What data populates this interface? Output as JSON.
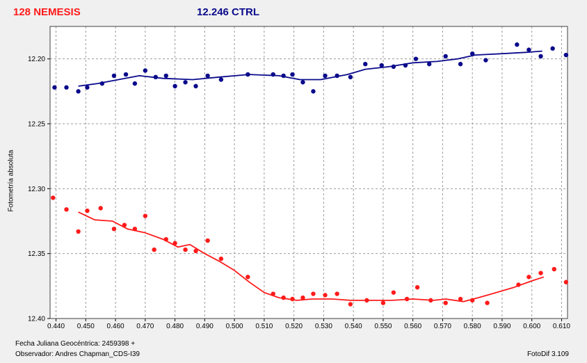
{
  "header": {
    "target_label": "128 NEMESIS",
    "control_label": "12.246 CTRL",
    "target_color": "#ff1a1a",
    "control_color": "#0a0a8c"
  },
  "footer": {
    "date_label": "Fecha Juliana Geocéntrica: 2459398 +",
    "observer_label": "Observador: Andres Chapman_CDS-I39",
    "version_label": "FotoDif 3.109"
  },
  "chart_data": {
    "type": "scatter",
    "ylabel": "Fotometría absoluta",
    "xlim": [
      0.438,
      0.612
    ],
    "ylim": [
      12.4,
      12.175
    ],
    "y_inverted": true,
    "grid": true,
    "x_ticks": [
      "0.440",
      "0.450",
      "0.460",
      "0.470",
      "0.480",
      "0.490",
      "0.500",
      "0.510",
      "0.520",
      "0.530",
      "0.540",
      "0.550",
      "0.560",
      "0.570",
      "0.580",
      "0.590",
      "0.600",
      "0.610"
    ],
    "y_ticks": [
      "12.20",
      "12.25",
      "12.30",
      "12.35",
      "12.40"
    ],
    "series": [
      {
        "name": "12.246 CTRL",
        "color": "#0a0a8c",
        "points": [
          [
            0.4395,
            12.222
          ],
          [
            0.4435,
            12.222
          ],
          [
            0.4475,
            12.225
          ],
          [
            0.4505,
            12.222
          ],
          [
            0.4555,
            12.219
          ],
          [
            0.4595,
            12.213
          ],
          [
            0.4635,
            12.212
          ],
          [
            0.4665,
            12.219
          ],
          [
            0.47,
            12.209
          ],
          [
            0.4735,
            12.214
          ],
          [
            0.477,
            12.213
          ],
          [
            0.48,
            12.221
          ],
          [
            0.4835,
            12.218
          ],
          [
            0.487,
            12.221
          ],
          [
            0.491,
            12.213
          ],
          [
            0.4955,
            12.216
          ],
          [
            0.5045,
            12.212
          ],
          [
            0.513,
            12.212
          ],
          [
            0.5165,
            12.213
          ],
          [
            0.5195,
            12.212
          ],
          [
            0.523,
            12.218
          ],
          [
            0.5265,
            12.225
          ],
          [
            0.5305,
            12.213
          ],
          [
            0.5345,
            12.213
          ],
          [
            0.539,
            12.214
          ],
          [
            0.544,
            12.204
          ],
          [
            0.5495,
            12.205
          ],
          [
            0.5535,
            12.206
          ],
          [
            0.5575,
            12.205
          ],
          [
            0.561,
            12.2
          ],
          [
            0.5655,
            12.204
          ],
          [
            0.571,
            12.198
          ],
          [
            0.576,
            12.204
          ],
          [
            0.58,
            12.196
          ],
          [
            0.5845,
            12.201
          ],
          [
            0.595,
            12.189
          ],
          [
            0.599,
            12.193
          ],
          [
            0.603,
            12.198
          ],
          [
            0.607,
            12.192
          ],
          [
            0.6115,
            12.197
          ]
        ],
        "trend": [
          [
            0.4475,
            12.221
          ],
          [
            0.454,
            12.219
          ],
          [
            0.461,
            12.216
          ],
          [
            0.468,
            12.213
          ],
          [
            0.476,
            12.215
          ],
          [
            0.486,
            12.216
          ],
          [
            0.495,
            12.214
          ],
          [
            0.505,
            12.212
          ],
          [
            0.515,
            12.213
          ],
          [
            0.522,
            12.216
          ],
          [
            0.529,
            12.216
          ],
          [
            0.538,
            12.212
          ],
          [
            0.544,
            12.208
          ],
          [
            0.552,
            12.206
          ],
          [
            0.56,
            12.203
          ],
          [
            0.568,
            12.202
          ],
          [
            0.575,
            12.2
          ],
          [
            0.581,
            12.197
          ],
          [
            0.59,
            12.196
          ],
          [
            0.598,
            12.195
          ],
          [
            0.6035,
            12.194
          ]
        ]
      },
      {
        "name": "128 NEMESIS",
        "color": "#ff1a1a",
        "points": [
          [
            0.439,
            12.307
          ],
          [
            0.4435,
            12.316
          ],
          [
            0.4475,
            12.333
          ],
          [
            0.4505,
            12.317
          ],
          [
            0.455,
            12.315
          ],
          [
            0.4595,
            12.331
          ],
          [
            0.463,
            12.328
          ],
          [
            0.4665,
            12.331
          ],
          [
            0.47,
            12.321
          ],
          [
            0.473,
            12.347
          ],
          [
            0.477,
            12.339
          ],
          [
            0.48,
            12.342
          ],
          [
            0.4835,
            12.347
          ],
          [
            0.487,
            12.348
          ],
          [
            0.491,
            12.34
          ],
          [
            0.4955,
            12.354
          ],
          [
            0.5045,
            12.368
          ],
          [
            0.513,
            12.381
          ],
          [
            0.5165,
            12.384
          ],
          [
            0.5195,
            12.385
          ],
          [
            0.523,
            12.384
          ],
          [
            0.5265,
            12.381
          ],
          [
            0.5305,
            12.382
          ],
          [
            0.5345,
            12.381
          ],
          [
            0.539,
            12.389
          ],
          [
            0.5445,
            12.386
          ],
          [
            0.55,
            12.388
          ],
          [
            0.5535,
            12.38
          ],
          [
            0.558,
            12.385
          ],
          [
            0.5615,
            12.376
          ],
          [
            0.566,
            12.386
          ],
          [
            0.571,
            12.388
          ],
          [
            0.576,
            12.385
          ],
          [
            0.58,
            12.386
          ],
          [
            0.585,
            12.388
          ],
          [
            0.5955,
            12.374
          ],
          [
            0.599,
            12.368
          ],
          [
            0.603,
            12.365
          ],
          [
            0.6075,
            12.362
          ],
          [
            0.6115,
            12.372
          ]
        ],
        "trend": [
          [
            0.4475,
            12.318
          ],
          [
            0.453,
            12.324
          ],
          [
            0.459,
            12.325
          ],
          [
            0.464,
            12.331
          ],
          [
            0.47,
            12.334
          ],
          [
            0.476,
            12.339
          ],
          [
            0.481,
            12.345
          ],
          [
            0.485,
            12.343
          ],
          [
            0.49,
            12.35
          ],
          [
            0.495,
            12.356
          ],
          [
            0.5,
            12.363
          ],
          [
            0.505,
            12.372
          ],
          [
            0.51,
            12.38
          ],
          [
            0.515,
            12.384
          ],
          [
            0.521,
            12.386
          ],
          [
            0.526,
            12.385
          ],
          [
            0.533,
            12.385
          ],
          [
            0.539,
            12.386
          ],
          [
            0.546,
            12.386
          ],
          [
            0.553,
            12.386
          ],
          [
            0.56,
            12.385
          ],
          [
            0.567,
            12.386
          ],
          [
            0.571,
            12.385
          ],
          [
            0.577,
            12.387
          ],
          [
            0.582,
            12.384
          ],
          [
            0.588,
            12.38
          ],
          [
            0.594,
            12.376
          ],
          [
            0.6,
            12.371
          ],
          [
            0.604,
            12.368
          ]
        ]
      }
    ]
  }
}
